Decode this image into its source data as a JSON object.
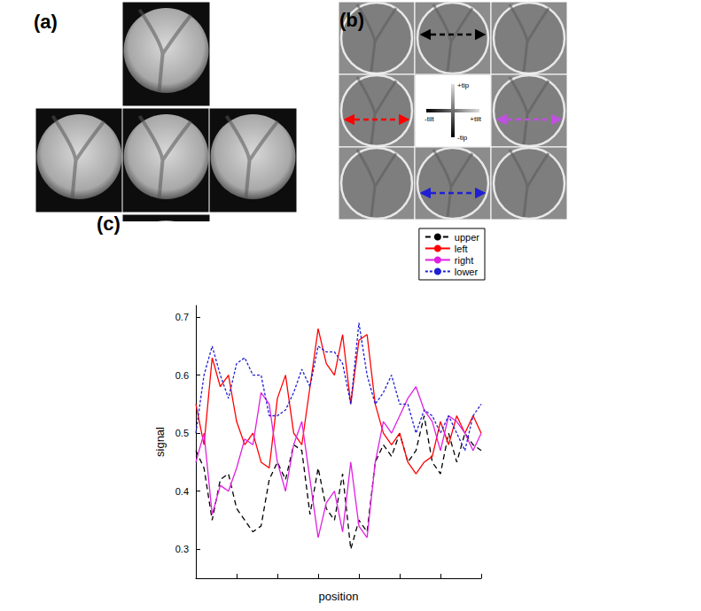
{
  "panels": {
    "a": {
      "label": "(a)"
    },
    "b": {
      "label": "(b)",
      "axis_labels": {
        "top": "+tip",
        "bottom": "-tip",
        "left": "-tilt",
        "right": "+tilt"
      }
    }
  },
  "chart_data": {
    "type": "line",
    "title": "(c)",
    "x_label": "position",
    "y_label": "signal",
    "x": [
      0,
      2,
      4,
      6,
      8,
      10,
      12,
      14,
      16,
      18,
      20,
      22,
      24,
      26,
      28,
      30,
      32,
      34,
      36,
      38,
      40,
      42,
      44,
      46,
      48,
      50,
      52,
      54,
      56,
      58,
      60,
      62,
      64,
      66,
      68,
      70
    ],
    "series": [
      {
        "name": "upper",
        "color": "#000000",
        "line_style": "dashed",
        "values": [
          0.47,
          0.44,
          0.35,
          0.42,
          0.43,
          0.37,
          0.35,
          0.33,
          0.34,
          0.42,
          0.45,
          0.42,
          0.48,
          0.47,
          0.36,
          0.44,
          0.37,
          0.35,
          0.43,
          0.3,
          0.35,
          0.33,
          0.45,
          0.48,
          0.46,
          0.5,
          0.45,
          0.47,
          0.53,
          0.45,
          0.43,
          0.5,
          0.45,
          0.5,
          0.48,
          0.47
        ]
      },
      {
        "name": "left",
        "color": "#ff0000",
        "line_style": "solid",
        "values": [
          0.55,
          0.48,
          0.63,
          0.58,
          0.6,
          0.52,
          0.48,
          0.5,
          0.45,
          0.44,
          0.56,
          0.6,
          0.5,
          0.48,
          0.58,
          0.68,
          0.62,
          0.6,
          0.67,
          0.55,
          0.66,
          0.67,
          0.55,
          0.5,
          0.48,
          0.5,
          0.45,
          0.43,
          0.45,
          0.46,
          0.52,
          0.48,
          0.53,
          0.5,
          0.53,
          0.5
        ]
      },
      {
        "name": "right",
        "color": "#e020e0",
        "line_style": "solid",
        "values": [
          0.45,
          0.5,
          0.36,
          0.41,
          0.4,
          0.44,
          0.49,
          0.48,
          0.57,
          0.55,
          0.45,
          0.4,
          0.48,
          0.52,
          0.42,
          0.32,
          0.38,
          0.4,
          0.33,
          0.45,
          0.34,
          0.32,
          0.45,
          0.52,
          0.5,
          0.53,
          0.56,
          0.58,
          0.54,
          0.52,
          0.47,
          0.53,
          0.52,
          0.5,
          0.47,
          0.5
        ]
      },
      {
        "name": "lower",
        "color": "#1f1fd6",
        "line_style": "dotted",
        "values": [
          0.5,
          0.6,
          0.65,
          0.6,
          0.56,
          0.62,
          0.63,
          0.6,
          0.6,
          0.53,
          0.53,
          0.54,
          0.57,
          0.61,
          0.58,
          0.65,
          0.64,
          0.64,
          0.62,
          0.55,
          0.69,
          0.6,
          0.55,
          0.57,
          0.6,
          0.55,
          0.55,
          0.5,
          0.54,
          0.53,
          0.5,
          0.53,
          0.5,
          0.47,
          0.53,
          0.55
        ]
      }
    ],
    "xlim": [
      0,
      70
    ],
    "xticks": [
      0,
      10,
      20,
      30,
      40,
      50,
      60,
      70
    ],
    "ylim": [
      0.25,
      0.72
    ],
    "yticks": [
      0.3,
      0.4,
      0.5,
      0.6,
      0.7
    ],
    "grid": false,
    "legend": "upper right",
    "tick_labels": "y"
  }
}
